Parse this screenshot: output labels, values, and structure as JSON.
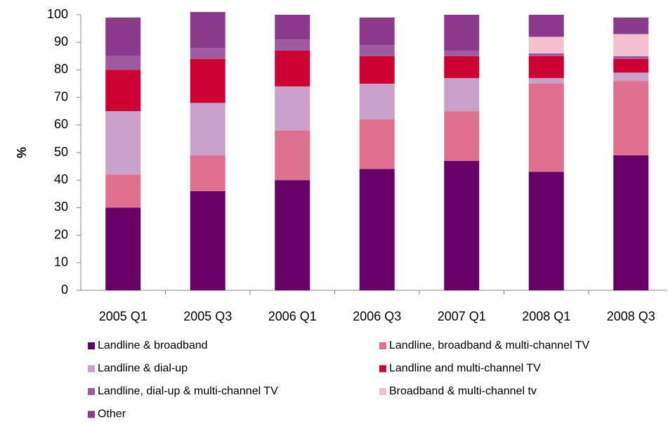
{
  "chart_data": {
    "type": "stacked_bar",
    "y_label": "%",
    "categories": [
      "2005 Q1",
      "2005 Q3",
      "2006 Q1",
      "2006 Q3",
      "2007 Q1",
      "2008 Q1",
      "2008 Q3"
    ],
    "series": [
      {
        "name": "Landline & broadband",
        "color": "#660066",
        "values": [
          30,
          36,
          40,
          44,
          47,
          43,
          49
        ]
      },
      {
        "name": "Landline, broadband & multi-channel TV",
        "color": "#e07090",
        "values": [
          12,
          13,
          18,
          18,
          18,
          32,
          27
        ]
      },
      {
        "name": "Landline & dial-up",
        "color": "#c8a0c8",
        "values": [
          23,
          19,
          16,
          13,
          12,
          2,
          3
        ]
      },
      {
        "name": "Landline and multi-channel TV",
        "color": "#cc0033",
        "values": [
          15,
          16,
          13,
          10,
          8,
          8,
          5
        ]
      },
      {
        "name": "Landline, dial-up & multi-channel TV",
        "color": "#a05aa0",
        "values": [
          5,
          4,
          4,
          4,
          2,
          1,
          1
        ]
      },
      {
        "name": "Broadband & multi-channel tv",
        "color": "#f4c0d0",
        "values": [
          0,
          0,
          0,
          0,
          0,
          6,
          8
        ]
      },
      {
        "name": "Other",
        "color": "#8b3a8b",
        "values": [
          14,
          13,
          9,
          10,
          13,
          8,
          6
        ]
      }
    ],
    "ylim": [
      0,
      100
    ],
    "yticks": [
      0,
      10,
      20,
      30,
      40,
      50,
      60,
      70,
      80,
      90,
      100
    ],
    "grid": false
  }
}
